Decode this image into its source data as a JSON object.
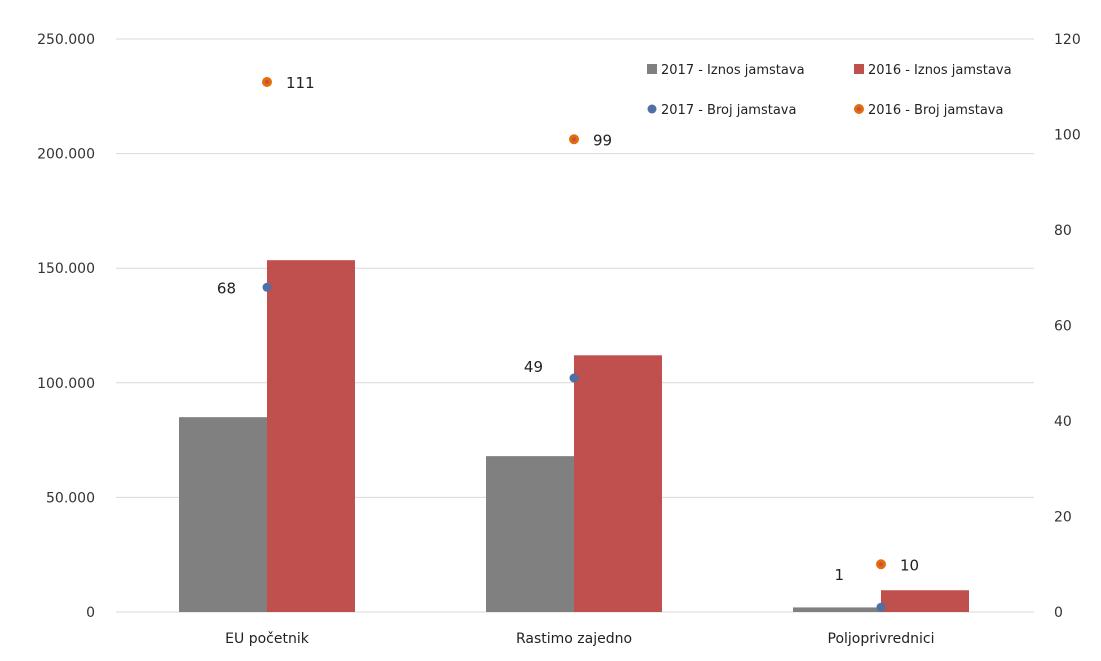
{
  "chart_data": {
    "type": "bar",
    "title": "",
    "categories": [
      "EU početnik",
      "Rastimo zajedno",
      "Poljoprivrednici"
    ],
    "y_left": {
      "ticks": [
        "0",
        "50.000",
        "100.000",
        "150.000",
        "200.000",
        "250.000"
      ],
      "ylim": [
        0,
        250000
      ]
    },
    "y_right": {
      "ticks": [
        "0",
        "20",
        "40",
        "60",
        "80",
        "100",
        "120"
      ],
      "ylim": [
        0,
        120
      ]
    },
    "grid": true,
    "legend_position": "top-right",
    "bar_series": [
      {
        "name": "2017 - Iznos jamstava",
        "color": "#808080",
        "values": [
          85000,
          68000,
          2000
        ]
      },
      {
        "name": "2016 - Iznos jamstava",
        "color": "#c0504d",
        "values": [
          153500,
          112000,
          9500
        ]
      }
    ],
    "point_series": [
      {
        "name": "2017 - Broj jamstava",
        "color": "#4f6fa5",
        "values": [
          68,
          49,
          1
        ],
        "labels": [
          "68",
          "49",
          "1"
        ]
      },
      {
        "name": "2016 - Broj jamstava",
        "color": "#e46c0a",
        "values": [
          111,
          99,
          10
        ],
        "labels": [
          "111",
          "99",
          "10"
        ]
      }
    ]
  }
}
